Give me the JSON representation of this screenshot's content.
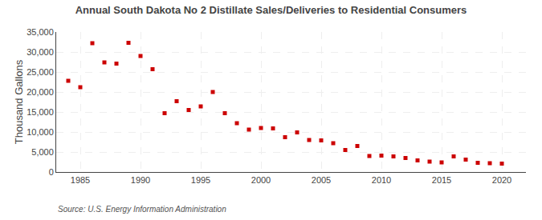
{
  "chart_data": {
    "type": "scatter",
    "title": "Annual South Dakota No 2 Distillate Sales/Deliveries to Residential Consumers",
    "ylabel": "Thousand Gallons",
    "annotation": "Source: U.S. Energy Information Administration",
    "color": "#cc0000",
    "marker": "square",
    "x": [
      1984,
      1985,
      1986,
      1987,
      1988,
      1989,
      1990,
      1991,
      1992,
      1993,
      1994,
      1995,
      1996,
      1997,
      1998,
      1999,
      2000,
      2001,
      2002,
      2003,
      2004,
      2005,
      2006,
      2007,
      2008,
      2009,
      2010,
      2011,
      2012,
      2013,
      2014,
      2015,
      2016,
      2017,
      2018,
      2019,
      2020
    ],
    "values": [
      22800,
      21200,
      32200,
      27400,
      27100,
      32300,
      29000,
      25700,
      14700,
      17700,
      15500,
      16400,
      20000,
      14700,
      12200,
      10600,
      11000,
      10900,
      8700,
      9900,
      8000,
      7900,
      7200,
      5500,
      6500,
      4000,
      4100,
      3900,
      3500,
      2900,
      2600,
      2400,
      3900,
      3100,
      2300,
      2200,
      2100
    ],
    "xlim": [
      1983,
      2022
    ],
    "ylim": [
      0,
      35000
    ],
    "xticks": [
      1985,
      1990,
      1995,
      2000,
      2005,
      2010,
      2015,
      2020
    ],
    "yticks": [
      0,
      {
        "value": 5000,
        "label": "5,000"
      },
      {
        "value": 10000,
        "label": "10,000"
      },
      {
        "value": 15000,
        "label": "15,000"
      },
      {
        "value": 20000,
        "label": "20,000"
      },
      {
        "value": 25000,
        "label": "25,000"
      },
      {
        "value": 30000,
        "label": "30,000"
      },
      {
        "value": 35000,
        "label": "35,000"
      }
    ],
    "grid": true
  }
}
